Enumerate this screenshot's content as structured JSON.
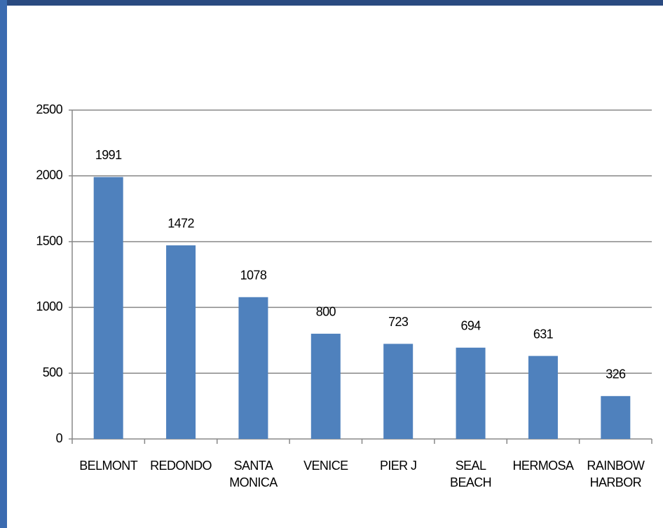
{
  "chart_data": {
    "type": "bar",
    "categories": [
      "BELMONT",
      "REDONDO",
      "SANTA MONICA",
      "VENICE",
      "PIER J",
      "SEAL BEACH",
      "HERMOSA",
      "RAINBOW HARBOR"
    ],
    "values": [
      1991,
      1472,
      1078,
      800,
      723,
      694,
      631,
      326
    ],
    "color": "#4f81bd",
    "ylim": [
      0,
      2500
    ],
    "yticks": [
      0,
      500,
      1000,
      1500,
      2000,
      2500
    ],
    "grid": true
  }
}
